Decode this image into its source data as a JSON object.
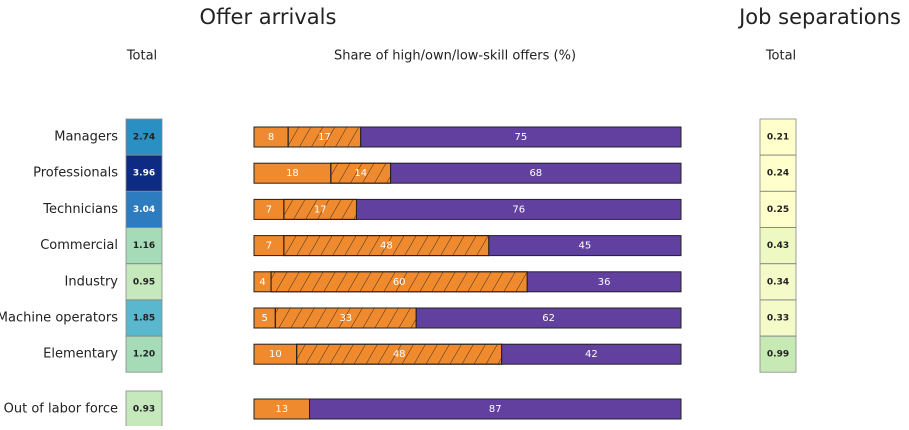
{
  "titles": [
    "Offer arrivals",
    "Job separations"
  ],
  "categories": [
    "Managers",
    "Professionals",
    "Technicians",
    "Commercial",
    "Industry",
    "Machine operators",
    "Elementary",
    "Out of labor force"
  ],
  "chart_data": [
    {
      "type": "heatmap",
      "title": "Total",
      "values": [
        2.74,
        3.96,
        3.04,
        1.16,
        0.95,
        1.85,
        1.2,
        0.93
      ],
      "value_labels": [
        "2.74",
        "3.96",
        "3.04",
        "1.16",
        "0.95",
        "1.85",
        "1.20",
        "0.93"
      ],
      "colors": [
        "#2a8fc3",
        "#0d2b83",
        "#2d7cbf",
        "#a6dbb8",
        "#c5e8bd",
        "#59b8cd",
        "#a6dbb8",
        "#c5e8bd"
      ]
    },
    {
      "type": "stacked_bar",
      "title": "Share of high/own/low-skill offers (%)",
      "xlim": [
        0,
        100
      ],
      "series": [
        {
          "name": "high",
          "color": "#f08a2e",
          "hatch": false,
          "values": [
            8,
            18,
            7,
            7,
            4,
            5,
            10,
            13
          ]
        },
        {
          "name": "own",
          "color": "#f08a2e",
          "hatch": true,
          "values": [
            17,
            14,
            17,
            48,
            60,
            33,
            48,
            null
          ]
        },
        {
          "name": "low",
          "color": "#6140a0",
          "hatch": false,
          "values": [
            75,
            68,
            76,
            45,
            36,
            62,
            42,
            87
          ]
        }
      ]
    },
    {
      "type": "heatmap",
      "title": "Total",
      "values": [
        0.21,
        0.24,
        0.25,
        0.43,
        0.34,
        0.33,
        0.99,
        null
      ],
      "value_labels": [
        "0.21",
        "0.24",
        "0.25",
        "0.43",
        "0.34",
        "0.33",
        "0.99",
        null
      ],
      "colors": [
        "#ffffcc",
        "#ffffcc",
        "#ffffcc",
        "#eef8c2",
        "#f4fac8",
        "#f4fac8",
        "#c7e9b4",
        null
      ]
    }
  ]
}
